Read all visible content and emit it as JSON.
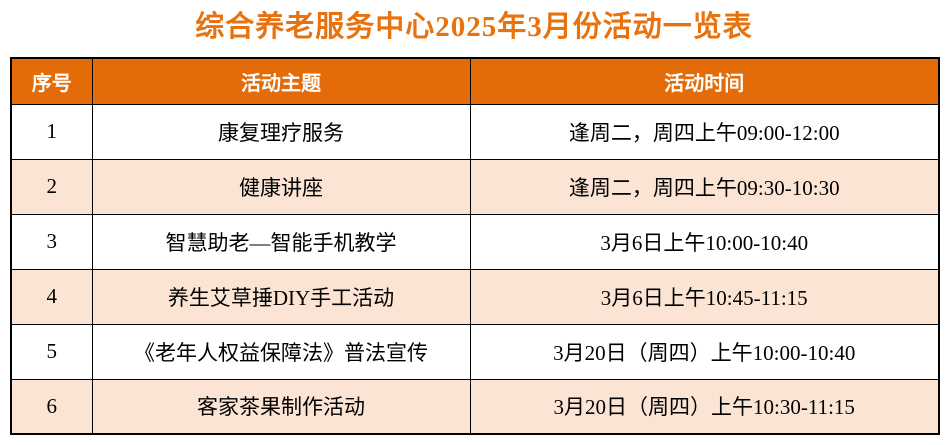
{
  "page": {
    "title": "综合养老服务中心2025年3月份活动一览表"
  },
  "colors": {
    "title_text": "#E8720E",
    "header_bg": "#E36C09",
    "header_text": "#FFFFFF",
    "alt_row_bg": "#FBE4D3",
    "border": "#000000"
  },
  "table": {
    "headers": {
      "seq": "序号",
      "theme": "活动主题",
      "time": "活动时间"
    },
    "rows": [
      {
        "seq": "1",
        "theme": "康复理疗服务",
        "time": "逢周二，周四上午09:00-12:00"
      },
      {
        "seq": "2",
        "theme": "健康讲座",
        "time": "逢周二，周四上午09:30-10:30"
      },
      {
        "seq": "3",
        "theme": "智慧助老—智能手机教学",
        "time": "3月6日上午10:00-10:40"
      },
      {
        "seq": "4",
        "theme": "养生艾草捶DIY手工活动",
        "time": "3月6日上午10:45-11:15"
      },
      {
        "seq": "5",
        "theme": "《老年人权益保障法》普法宣传",
        "time": "3月20日（周四）上午10:00-10:40"
      },
      {
        "seq": "6",
        "theme": "客家茶果制作活动",
        "time": "3月20日（周四）上午10:30-11:15"
      }
    ]
  }
}
